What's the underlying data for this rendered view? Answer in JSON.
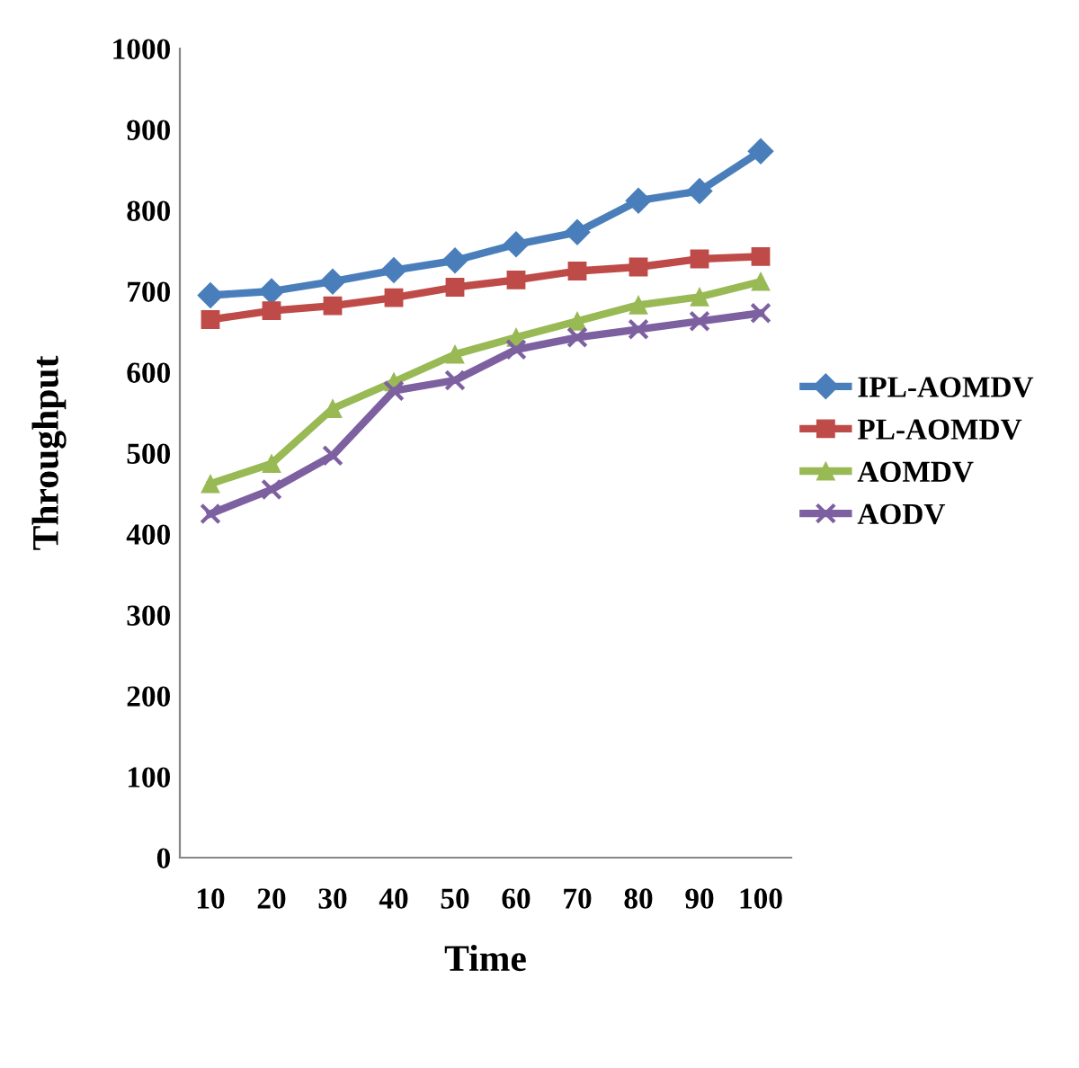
{
  "chart_data": {
    "type": "line",
    "xlabel": "Time",
    "ylabel": "Throughput",
    "categories": [
      "10",
      "20",
      "30",
      "40",
      "50",
      "60",
      "70",
      "80",
      "90",
      "100"
    ],
    "series": [
      {
        "name": "IPL-AOMDV",
        "color": "#4a7ebb",
        "marker": "diamond",
        "values": [
          695,
          700,
          712,
          726,
          738,
          758,
          773,
          812,
          824,
          873
        ]
      },
      {
        "name": "PL-AOMDV",
        "color": "#be4b48",
        "marker": "square",
        "values": [
          665,
          676,
          682,
          692,
          705,
          714,
          725,
          730,
          740,
          743
        ]
      },
      {
        "name": "AOMDV",
        "color": "#98b954",
        "marker": "triangle",
        "values": [
          462,
          487,
          555,
          588,
          622,
          643,
          663,
          683,
          693,
          712
        ]
      },
      {
        "name": "AODV",
        "color": "#7d60a0",
        "marker": "cross",
        "values": [
          425,
          455,
          497,
          577,
          590,
          628,
          643,
          653,
          663,
          673
        ]
      }
    ],
    "ylim": [
      0,
      1000
    ],
    "yticks": [
      0,
      100,
      200,
      300,
      400,
      500,
      600,
      700,
      800,
      900,
      1000
    ],
    "grid": false,
    "legend": "right",
    "line_style": "solid"
  }
}
